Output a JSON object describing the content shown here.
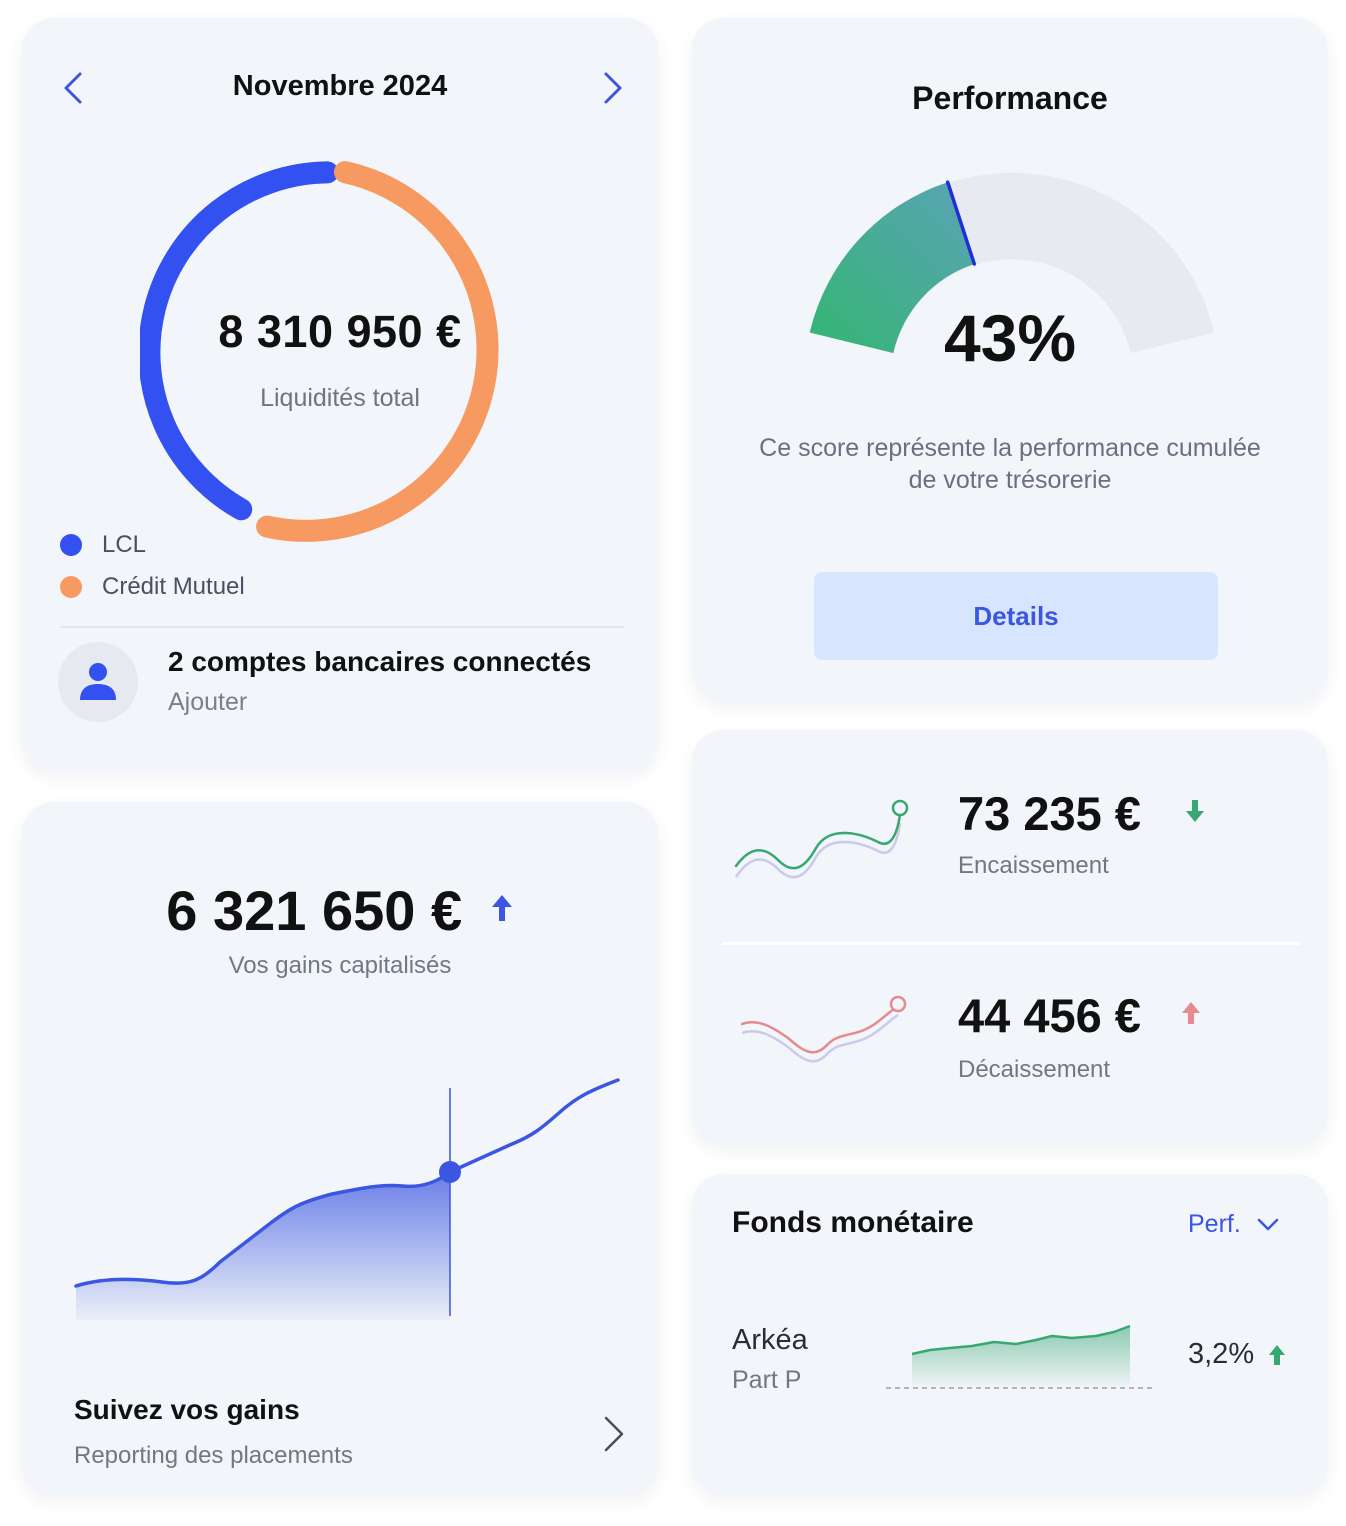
{
  "liquidity": {
    "month": "Novembre 2024",
    "total_amount": "8 310 950 €",
    "total_label": "Liquidités total",
    "legend": [
      {
        "label": "LCL",
        "color": "#3351f0"
      },
      {
        "label": "Crédit Mutuel",
        "color": "#f79a62"
      }
    ],
    "accounts_title": "2 comptes bancaires connectés",
    "add_label": "Ajouter",
    "icons": [
      "chevron-left-icon",
      "chevron-right-icon",
      "user-icon"
    ]
  },
  "performance": {
    "title": "Performance",
    "value": "43%",
    "score_fraction": 0.43,
    "description": "Ce score représente la performance cumulée de votre trésorerie",
    "details_label": "Details"
  },
  "gains": {
    "amount": "6 321 650 €",
    "subtitle": "Vos gains capitalisés",
    "footer_title": "Suivez vos gains",
    "footer_subtitle": "Reporting des placements",
    "accent_color": "#3b56e0"
  },
  "flows": {
    "encaissement": {
      "amount": "73 235 €",
      "label": "Encaissement",
      "trend": "down",
      "color": "#38a873"
    },
    "decaissement": {
      "amount": "44 456 €",
      "label": "Décaissement",
      "trend": "up",
      "color": "#e58a8e"
    }
  },
  "fonds": {
    "title": "Fonds monétaire",
    "filter_label": "Perf.",
    "fund": {
      "name": "Arkéa",
      "share": "Part P",
      "perf": "3,2%",
      "trend": "up",
      "color": "#38a873"
    }
  }
}
